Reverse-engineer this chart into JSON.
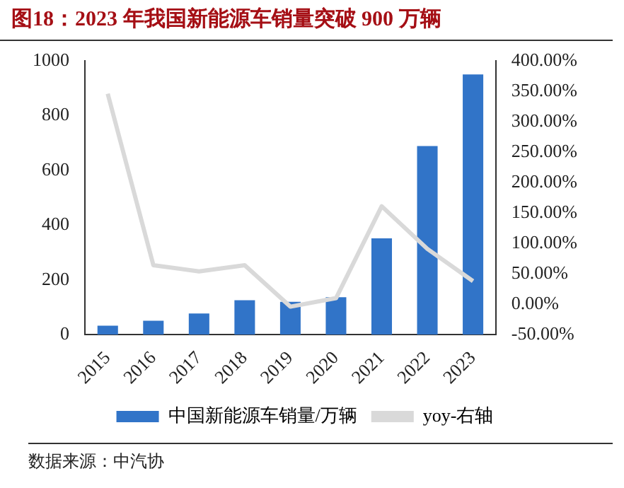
{
  "chart_data": {
    "type": "bar",
    "title": "图18：2023 年我国新能源车销量突破 900 万辆",
    "annotations": [
      "数据来源：中汽协"
    ],
    "categories": [
      "2015",
      "2016",
      "2017",
      "2018",
      "2019",
      "2020",
      "2021",
      "2022",
      "2023"
    ],
    "series": [
      {
        "name": "中国新能源车销量/万辆",
        "color": "#3174c8",
        "values": [
          33,
          51,
          77,
          126,
          120,
          137,
          352,
          689,
          950
        ]
      },
      {
        "name": "yoy-右轴",
        "type": "line",
        "axis": "y2",
        "color": "#d9d9d9",
        "values": [
          346,
          64,
          54,
          64,
          -4,
          10,
          161,
          91,
          38
        ]
      }
    ],
    "ylim": [
      0,
      1000
    ],
    "yticks": [
      0,
      200,
      400,
      600,
      800,
      1000
    ],
    "y2lim": [
      -50,
      400
    ],
    "y2ticks": [
      {
        "value": -50,
        "label": "-50.00%"
      },
      {
        "value": 0,
        "label": "0.00%"
      },
      {
        "value": 50,
        "label": "50.00%"
      },
      {
        "value": 100,
        "label": "100.00%"
      },
      {
        "value": 150,
        "label": "150.00%"
      },
      {
        "value": 200,
        "label": "200.00%"
      },
      {
        "value": 250,
        "label": "250.00%"
      },
      {
        "value": 300,
        "label": "300.00%"
      },
      {
        "value": 350,
        "label": "350.00%"
      },
      {
        "value": 400,
        "label": "400.00%"
      }
    ],
    "grid": false,
    "legend": "bottom",
    "marker": "none"
  }
}
